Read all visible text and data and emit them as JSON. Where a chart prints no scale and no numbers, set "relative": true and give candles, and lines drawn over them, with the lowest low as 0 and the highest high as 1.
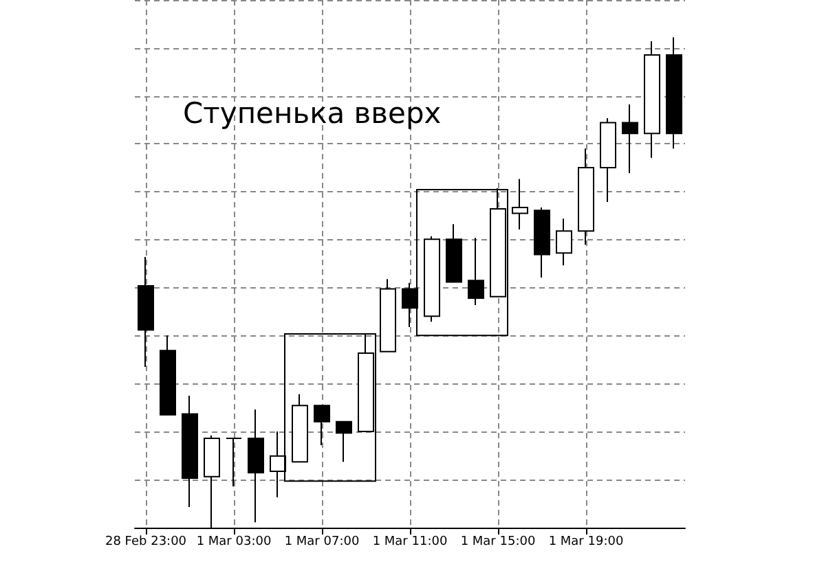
{
  "chart_data": {
    "type": "candlestick",
    "relative": true,
    "grid": true,
    "tick_labels": "x",
    "annotations": [
      "Ступенька вверх"
    ],
    "categories": [
      "28 Feb 23:00",
      null,
      null,
      null,
      "1 Mar 03:00",
      null,
      null,
      null,
      "1 Mar 07:00",
      null,
      null,
      null,
      "1 Mar 11:00",
      null,
      null,
      null,
      "1 Mar 15:00",
      null,
      null,
      null,
      "1 Mar 19:00",
      null,
      null,
      null,
      null
    ],
    "ohlc": [
      [
        0.493,
        0.552,
        0.328,
        0.403
      ],
      [
        0.361,
        0.392,
        0.23,
        0.23
      ],
      [
        0.232,
        0.269,
        0.042,
        0.101
      ],
      [
        0.104,
        0.188,
        0,
        0.182
      ],
      [
        0.182,
        0.182,
        0.084,
        0.182
      ],
      [
        0.182,
        0.241,
        0.011,
        0.112
      ],
      [
        0.115,
        0.196,
        0.062,
        0.146
      ],
      [
        0.134,
        0.272,
        0.134,
        0.249
      ],
      [
        0.249,
        0.249,
        0.168,
        0.216
      ],
      [
        0.216,
        0.216,
        0.134,
        0.193
      ],
      [
        0.196,
        0.395,
        0.196,
        0.356
      ],
      [
        0.359,
        0.507,
        0.359,
        0.487
      ],
      [
        0.487,
        0.499,
        0.409,
        0.448
      ],
      [
        0.431,
        0.594,
        0.42,
        0.588
      ],
      [
        0.588,
        0.619,
        0.501,
        0.501
      ],
      [
        0.504,
        0.591,
        0.454,
        0.468
      ],
      [
        0.471,
        0.692,
        0.471,
        0.65
      ],
      [
        0.641,
        0.711,
        0.608,
        0.653
      ],
      [
        0.647,
        0.653,
        0.51,
        0.557
      ],
      [
        0.56,
        0.63,
        0.535,
        0.605
      ],
      [
        0.605,
        0.773,
        0.577,
        0.734
      ],
      [
        0.734,
        0.835,
        0.664,
        0.826
      ],
      [
        0.826,
        0.863,
        0.723,
        0.804
      ],
      [
        0.804,
        0.992,
        0.754,
        0.964
      ],
      [
        0.964,
        1,
        0.773,
        0.804
      ]
    ]
  }
}
